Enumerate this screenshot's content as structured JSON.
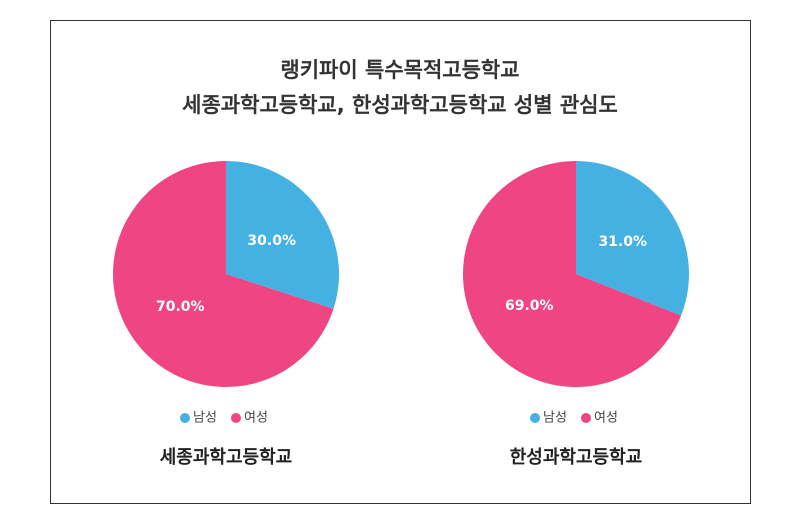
{
  "title_lines": [
    "랭키파이 특수목적고등학교",
    "세종과학고등학교, 한성과학고등학교 성별 관심도"
  ],
  "chart_data": [
    {
      "type": "pie",
      "title": "세종과학고등학교",
      "categories": [
        "남성",
        "여성"
      ],
      "values": [
        30,
        70
      ],
      "value_labels": [
        "30.0%",
        "70.0%"
      ],
      "colors": [
        "#45b1e2",
        "#ef4582"
      ]
    },
    {
      "type": "pie",
      "title": "한성과학고등학교",
      "categories": [
        "남성",
        "여성"
      ],
      "values": [
        31,
        69
      ],
      "value_labels": [
        "31.0%",
        "69.0%"
      ],
      "colors": [
        "#45b1e2",
        "#ef4582"
      ]
    }
  ]
}
